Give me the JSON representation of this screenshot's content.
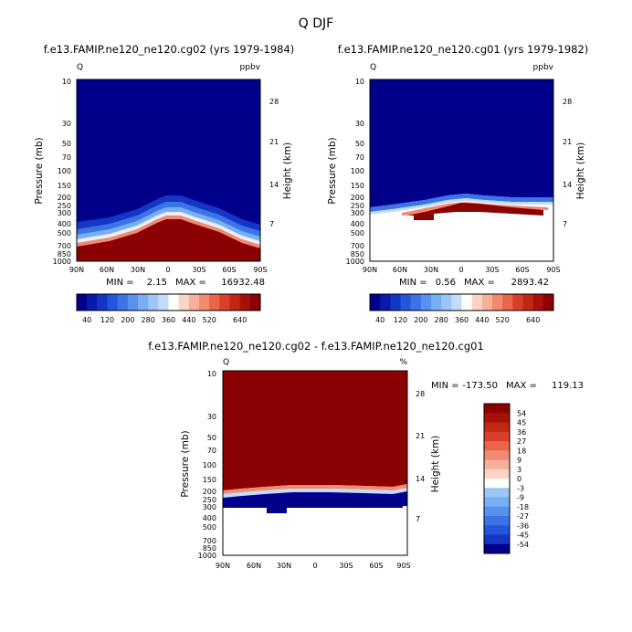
{
  "chart_data": [
    {
      "type": "heatmap",
      "id": "p1",
      "title": "Q DJF",
      "subtitle": "f.e13.FAMIP.ne120_ne120.cg02 (yrs 1979-1984)",
      "left_string": "Q",
      "right_string": "ppbv",
      "xlabel": "",
      "ylabel": "Pressure (mb)",
      "right_ylabel": "Height (km)",
      "x_ticks": [
        "90N",
        "60N",
        "30N",
        "0",
        "30S",
        "60S",
        "90S"
      ],
      "y_ticks": [
        "10",
        "30",
        "50",
        "70",
        "100",
        "150",
        "200",
        "250",
        "300",
        "400",
        "500",
        "700",
        "850",
        "1000"
      ],
      "right_ticks": [
        "28",
        "21",
        "14",
        "7"
      ],
      "min_label": "MIN =",
      "min_value": "2.15",
      "max_label": "MAX =",
      "max_value": "16932.48",
      "levels": [
        40,
        80,
        120,
        160,
        200,
        240,
        280,
        320,
        360,
        400,
        440,
        480,
        520,
        560,
        600,
        640
      ],
      "colorbar_labels": [
        "40",
        "120",
        "200",
        "280",
        "360",
        "440",
        "520",
        "640"
      ]
    },
    {
      "type": "heatmap",
      "id": "p2",
      "subtitle": "f.e13.FAMIP.ne120_ne120.cg01 (yrs 1979-1982)",
      "left_string": "Q",
      "right_string": "ppbv",
      "ylabel": "Pressure (mb)",
      "right_ylabel": "Height (km)",
      "x_ticks": [
        "90N",
        "60N",
        "30N",
        "0",
        "30S",
        "60S",
        "90S"
      ],
      "y_ticks": [
        "10",
        "30",
        "50",
        "70",
        "100",
        "150",
        "200",
        "250",
        "300",
        "400",
        "500",
        "700",
        "850",
        "1000"
      ],
      "right_ticks": [
        "28",
        "21",
        "14",
        "7"
      ],
      "min_label": "MIN =",
      "min_value": "0.56",
      "max_label": "MAX =",
      "max_value": "2893.42",
      "levels": [
        40,
        80,
        120,
        160,
        200,
        240,
        280,
        320,
        360,
        400,
        440,
        480,
        520,
        560,
        600,
        640
      ],
      "colorbar_labels": [
        "40",
        "120",
        "200",
        "280",
        "360",
        "440",
        "520",
        "640"
      ]
    },
    {
      "type": "heatmap",
      "id": "p3",
      "subtitle": "f.e13.FAMIP.ne120_ne120.cg02 - f.e13.FAMIP.ne120_ne120.cg01",
      "left_string": "Q",
      "right_string": "%",
      "ylabel": "Pressure (mb)",
      "right_ylabel": "Height (km)",
      "x_ticks": [
        "90N",
        "60N",
        "30N",
        "0",
        "30S",
        "60S",
        "90S"
      ],
      "y_ticks": [
        "10",
        "30",
        "50",
        "70",
        "100",
        "150",
        "200",
        "250",
        "300",
        "400",
        "500",
        "700",
        "850",
        "1000"
      ],
      "right_ticks": [
        "28",
        "21",
        "14",
        "7"
      ],
      "min_label": "MIN =",
      "min_value": "-173.50",
      "max_label": "MAX =",
      "max_value": "119.13",
      "levels": [
        -54,
        -45,
        -36,
        -27,
        -18,
        -9,
        -3,
        0,
        3,
        9,
        18,
        27,
        36,
        45,
        54
      ],
      "colorbar_labels": [
        "54",
        "45",
        "36",
        "27",
        "18",
        "9",
        "3",
        "0",
        "-3",
        "-9",
        "-18",
        "-27",
        "-36",
        "-45",
        "-54"
      ]
    }
  ],
  "colors": {
    "dark_blue": "#00008b",
    "dark_red": "#8b0000",
    "blue_ramp": [
      "#00008b",
      "#0a1aa8",
      "#1536c4",
      "#2456dc",
      "#3b74e6",
      "#5892ee",
      "#79aef3",
      "#9cc6f6",
      "#c2dcf9"
    ],
    "red_ramp": [
      "#fbd4c4",
      "#f8b09a",
      "#f28a70",
      "#e96448",
      "#d9402a",
      "#c22614",
      "#a8100a",
      "#8b0000"
    ],
    "white": "#ffffff"
  }
}
